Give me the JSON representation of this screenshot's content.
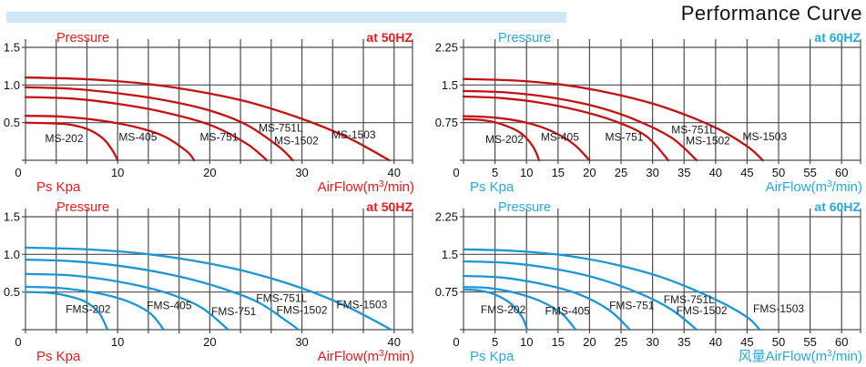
{
  "title": "Performance Curve",
  "colors": {
    "red_text": "#e8191c",
    "blue_text": "#29a8e0",
    "curve_red": "#c41114",
    "curve_blue": "#1d96d5",
    "grid": "#4d4d4d",
    "tick_text": "#111111",
    "model_text": "#1a1a1a",
    "banner": "#cfe8f7"
  },
  "chart_data": [
    {
      "type": "line",
      "id": "ms-50hz",
      "pressure_label": "Pressure",
      "frequency_label": "at 50HZ",
      "ylabel": "Ps Kpa",
      "xlabel_pre": "AirFlow(m",
      "xlabel_sup": "3",
      "xlabel_post": "/min)",
      "text_color_key": "red_text",
      "curve_color_key": "curve_red",
      "ylim": [
        0,
        1.5
      ],
      "xlim": [
        0,
        42
      ],
      "x_grid_step": 3.3333,
      "x_grid_max": 40,
      "y_ticks": [
        {
          "value": 1.5,
          "label": "1.5"
        },
        {
          "value": 1.0,
          "label": "1.0"
        },
        {
          "value": 0.5,
          "label": "0.5"
        }
      ],
      "zero_label": "0",
      "x_ticks": [
        {
          "value": 10,
          "label": "10"
        },
        {
          "value": 20,
          "label": "20"
        },
        {
          "value": 30,
          "label": "30"
        },
        {
          "value": 40,
          "label": "40"
        }
      ],
      "series": [
        {
          "name": "MS-202",
          "points": [
            [
              0,
              0.5
            ],
            [
              3,
              0.49
            ],
            [
              5,
              0.47
            ],
            [
              7,
              0.4
            ],
            [
              8.5,
              0.28
            ],
            [
              9.5,
              0.12
            ],
            [
              10,
              0
            ]
          ]
        },
        {
          "name": "MS-405",
          "points": [
            [
              0,
              0.59
            ],
            [
              4,
              0.58
            ],
            [
              8,
              0.53
            ],
            [
              12,
              0.44
            ],
            [
              15,
              0.32
            ],
            [
              17.5,
              0.12
            ],
            [
              18.3,
              0
            ]
          ]
        },
        {
          "name": "MS-751",
          "points": [
            [
              0,
              0.84
            ],
            [
              5,
              0.82
            ],
            [
              10,
              0.75
            ],
            [
              15,
              0.64
            ],
            [
              20,
              0.47
            ],
            [
              24,
              0.22
            ],
            [
              26.2,
              0
            ]
          ]
        },
        {
          "name": "MS-751L / MS-1502",
          "points": [
            [
              0,
              0.97
            ],
            [
              5,
              0.95
            ],
            [
              10,
              0.89
            ],
            [
              15,
              0.8
            ],
            [
              20,
              0.66
            ],
            [
              24,
              0.47
            ],
            [
              27.5,
              0.18
            ],
            [
              29,
              0
            ]
          ]
        },
        {
          "name": "MS-1503",
          "points": [
            [
              0,
              1.1
            ],
            [
              6,
              1.08
            ],
            [
              12,
              1.03
            ],
            [
              18,
              0.93
            ],
            [
              24,
              0.78
            ],
            [
              30,
              0.55
            ],
            [
              35,
              0.3
            ],
            [
              39.5,
              0
            ]
          ]
        }
      ],
      "series_labels": [
        {
          "text": "MS-202",
          "x": 4.2,
          "y": 0.29
        },
        {
          "text": "MS-405",
          "x": 12.2,
          "y": 0.31
        },
        {
          "text": "MS-751",
          "x": 21.0,
          "y": 0.31
        },
        {
          "text": "MS-751L",
          "x": 27.7,
          "y": 0.43
        },
        {
          "text": "MS-1502",
          "x": 29.4,
          "y": 0.26
        },
        {
          "text": "MS-1503",
          "x": 35.6,
          "y": 0.34
        }
      ]
    },
    {
      "type": "line",
      "id": "ms-60hz",
      "pressure_label": "Pressure",
      "frequency_label": "at 60HZ",
      "ylabel": "Ps Kpa",
      "xlabel_pre": "AirFlow(m",
      "xlabel_sup": "3",
      "xlabel_post": "/min)",
      "text_color_key": "blue_text",
      "curve_color_key": "curve_red",
      "ylim": [
        0,
        2.25
      ],
      "xlim": [
        0,
        63
      ],
      "x_grid_step": 5,
      "x_grid_max": 60,
      "y_ticks": [
        {
          "value": 2.25,
          "label": "2.25"
        },
        {
          "value": 1.5,
          "label": "1.5"
        },
        {
          "value": 0.75,
          "label": "0.75"
        }
      ],
      "zero_label": "0",
      "x_ticks": [
        {
          "value": 5,
          "label": "5"
        },
        {
          "value": 10,
          "label": "10"
        },
        {
          "value": 15,
          "label": "15"
        },
        {
          "value": 20,
          "label": "20"
        },
        {
          "value": 25,
          "label": "25"
        },
        {
          "value": 30,
          "label": "30"
        },
        {
          "value": 35,
          "label": "35"
        },
        {
          "value": 40,
          "label": "40"
        },
        {
          "value": 45,
          "label": "45"
        },
        {
          "value": 50,
          "label": "50"
        },
        {
          "value": 55,
          "label": "55"
        },
        {
          "value": 60,
          "label": "60"
        }
      ],
      "series": [
        {
          "name": "MS-202",
          "points": [
            [
              0,
              0.82
            ],
            [
              3,
              0.8
            ],
            [
              6,
              0.72
            ],
            [
              9,
              0.55
            ],
            [
              11,
              0.28
            ],
            [
              12,
              0
            ]
          ]
        },
        {
          "name": "MS-405",
          "points": [
            [
              0,
              0.88
            ],
            [
              5,
              0.85
            ],
            [
              10,
              0.75
            ],
            [
              14,
              0.58
            ],
            [
              17.5,
              0.32
            ],
            [
              20,
              0
            ]
          ]
        },
        {
          "name": "MS-751",
          "points": [
            [
              0,
              1.27
            ],
            [
              6,
              1.24
            ],
            [
              12,
              1.15
            ],
            [
              18,
              1.0
            ],
            [
              24,
              0.78
            ],
            [
              29,
              0.48
            ],
            [
              32.5,
              0
            ]
          ]
        },
        {
          "name": "MS-751L / MS-1502",
          "points": [
            [
              0,
              1.38
            ],
            [
              7,
              1.35
            ],
            [
              14,
              1.25
            ],
            [
              21,
              1.07
            ],
            [
              27,
              0.82
            ],
            [
              33,
              0.45
            ],
            [
              37,
              0
            ]
          ]
        },
        {
          "name": "MS-1503",
          "points": [
            [
              0,
              1.62
            ],
            [
              8,
              1.59
            ],
            [
              16,
              1.5
            ],
            [
              24,
              1.32
            ],
            [
              32,
              1.05
            ],
            [
              40,
              0.65
            ],
            [
              45,
              0.28
            ],
            [
              47.5,
              0
            ]
          ]
        }
      ],
      "series_labels": [
        {
          "text": "MS-202",
          "x": 6.5,
          "y": 0.42
        },
        {
          "text": "MS-405",
          "x": 15.3,
          "y": 0.46
        },
        {
          "text": "MS-751",
          "x": 25.5,
          "y": 0.46
        },
        {
          "text": "MS-751L",
          "x": 36.5,
          "y": 0.61
        },
        {
          "text": "MS-1502",
          "x": 38.8,
          "y": 0.39
        },
        {
          "text": "MS-1503",
          "x": 47.8,
          "y": 0.47
        }
      ]
    },
    {
      "type": "line",
      "id": "fms-50hz",
      "pressure_label": "Pressure",
      "frequency_label": "at 50HZ",
      "ylabel": "Ps Kpa",
      "xlabel_pre": "AirFlow(m",
      "xlabel_sup": "3",
      "xlabel_post": "/min)",
      "text_color_key": "red_text",
      "curve_color_key": "curve_blue",
      "ylim": [
        0,
        1.5
      ],
      "xlim": [
        0,
        42
      ],
      "x_grid_step": 3.3333,
      "x_grid_max": 40,
      "y_ticks": [
        {
          "value": 1.5,
          "label": "1.5"
        },
        {
          "value": 1.0,
          "label": "1.0"
        },
        {
          "value": 0.5,
          "label": "0.5"
        }
      ],
      "zero_label": "0",
      "x_ticks": [
        {
          "value": 10,
          "label": "10"
        },
        {
          "value": 20,
          "label": "20"
        },
        {
          "value": 30,
          "label": "30"
        },
        {
          "value": 40,
          "label": "40"
        }
      ],
      "series": [
        {
          "name": "FMS-202",
          "points": [
            [
              0,
              0.5
            ],
            [
              2.5,
              0.49
            ],
            [
              4.5,
              0.45
            ],
            [
              6.5,
              0.37
            ],
            [
              8,
              0.22
            ],
            [
              8.9,
              0
            ]
          ]
        },
        {
          "name": "FMS-405",
          "points": [
            [
              0,
              0.57
            ],
            [
              4,
              0.55
            ],
            [
              8,
              0.48
            ],
            [
              11,
              0.38
            ],
            [
              13.5,
              0.22
            ],
            [
              15,
              0
            ]
          ]
        },
        {
          "name": "FMS-751",
          "points": [
            [
              0,
              0.74
            ],
            [
              5,
              0.72
            ],
            [
              10,
              0.64
            ],
            [
              15,
              0.5
            ],
            [
              19,
              0.3
            ],
            [
              22,
              0
            ]
          ]
        },
        {
          "name": "FMS-751L / FMS-1502",
          "points": [
            [
              0,
              0.93
            ],
            [
              5,
              0.91
            ],
            [
              10,
              0.85
            ],
            [
              15,
              0.75
            ],
            [
              20,
              0.6
            ],
            [
              25,
              0.38
            ],
            [
              28.5,
              0.1
            ],
            [
              29.6,
              0
            ]
          ]
        },
        {
          "name": "FMS-1503",
          "points": [
            [
              0,
              1.09
            ],
            [
              6,
              1.07
            ],
            [
              12,
              1.02
            ],
            [
              18,
              0.92
            ],
            [
              24,
              0.77
            ],
            [
              30,
              0.55
            ],
            [
              35,
              0.3
            ],
            [
              39.7,
              0
            ]
          ]
        }
      ],
      "series_labels": [
        {
          "text": "FMS-202",
          "x": 6.8,
          "y": 0.27
        },
        {
          "text": "FMS-405",
          "x": 15.6,
          "y": 0.32
        },
        {
          "text": "FMS-751",
          "x": 22.6,
          "y": 0.24
        },
        {
          "text": "FMS-751L",
          "x": 27.8,
          "y": 0.42
        },
        {
          "text": "FMS-1502",
          "x": 30.0,
          "y": 0.26
        },
        {
          "text": "FMS-1503",
          "x": 36.5,
          "y": 0.33
        }
      ]
    },
    {
      "type": "line",
      "id": "fms-60hz",
      "pressure_label": "Pressure",
      "frequency_label": "at 60HZ",
      "ylabel": "Ps Kpa",
      "xlabel_pre": "风量AirFlow(m",
      "xlabel_sup": "3",
      "xlabel_post": "/min)",
      "text_color_key": "blue_text",
      "curve_color_key": "curve_blue",
      "ylim": [
        0,
        2.25
      ],
      "xlim": [
        0,
        63
      ],
      "x_grid_step": 5,
      "x_grid_max": 60,
      "y_ticks": [
        {
          "value": 2.25,
          "label": "2.25"
        },
        {
          "value": 1.5,
          "label": "1.5"
        },
        {
          "value": 0.75,
          "label": "0.75"
        }
      ],
      "zero_label": "0",
      "x_ticks": [
        {
          "value": 5,
          "label": "5"
        },
        {
          "value": 10,
          "label": "10"
        },
        {
          "value": 15,
          "label": "15"
        },
        {
          "value": 20,
          "label": "20"
        },
        {
          "value": 25,
          "label": "25"
        },
        {
          "value": 30,
          "label": "30"
        },
        {
          "value": 35,
          "label": "35"
        },
        {
          "value": 40,
          "label": "40"
        },
        {
          "value": 45,
          "label": "45"
        },
        {
          "value": 50,
          "label": "50"
        },
        {
          "value": 55,
          "label": "55"
        },
        {
          "value": 60,
          "label": "60"
        }
      ],
      "series": [
        {
          "name": "FMS-202",
          "points": [
            [
              0,
              0.8
            ],
            [
              2.5,
              0.78
            ],
            [
              5,
              0.7
            ],
            [
              7.5,
              0.52
            ],
            [
              9.3,
              0.25
            ],
            [
              10.1,
              0
            ]
          ]
        },
        {
          "name": "FMS-405",
          "points": [
            [
              0,
              0.85
            ],
            [
              4,
              0.83
            ],
            [
              8,
              0.74
            ],
            [
              12,
              0.58
            ],
            [
              15.5,
              0.33
            ],
            [
              17.8,
              0
            ]
          ]
        },
        {
          "name": "FMS-751",
          "points": [
            [
              0,
              1.07
            ],
            [
              6,
              1.04
            ],
            [
              12,
              0.92
            ],
            [
              18,
              0.72
            ],
            [
              23,
              0.4
            ],
            [
              26.4,
              0
            ]
          ]
        },
        {
          "name": "FMS-751L / FMS-1502",
          "points": [
            [
              0,
              1.36
            ],
            [
              7,
              1.33
            ],
            [
              14,
              1.22
            ],
            [
              21,
              1.03
            ],
            [
              28,
              0.72
            ],
            [
              33,
              0.4
            ],
            [
              37,
              0
            ]
          ]
        },
        {
          "name": "FMS-1503",
          "points": [
            [
              0,
              1.6
            ],
            [
              8,
              1.57
            ],
            [
              16,
              1.48
            ],
            [
              24,
              1.3
            ],
            [
              32,
              1.02
            ],
            [
              40,
              0.6
            ],
            [
              45,
              0.25
            ],
            [
              47,
              0
            ]
          ]
        }
      ],
      "series_labels": [
        {
          "text": "FMS-202",
          "x": 6.3,
          "y": 0.4
        },
        {
          "text": "FMS-405",
          "x": 16.5,
          "y": 0.37
        },
        {
          "text": "FMS-751",
          "x": 26.7,
          "y": 0.48
        },
        {
          "text": "FMS-751L",
          "x": 35.8,
          "y": 0.6
        },
        {
          "text": "FMS-1502",
          "x": 37.8,
          "y": 0.38
        },
        {
          "text": "FMS-1503",
          "x": 50.0,
          "y": 0.42
        }
      ]
    }
  ]
}
